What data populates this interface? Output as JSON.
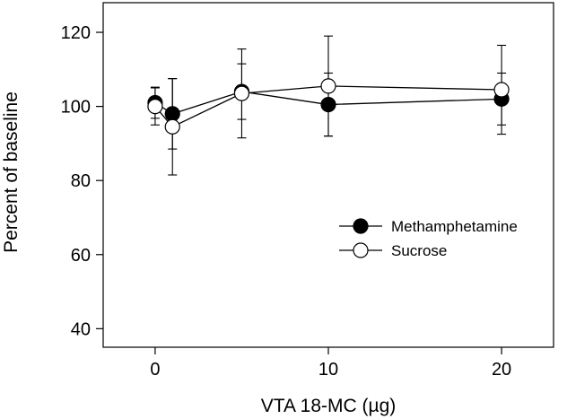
{
  "chart_data": {
    "type": "line",
    "title": "",
    "xlabel": "VTA 18-MC (µg)",
    "ylabel": "Percent of baseline",
    "xlim": [
      -3,
      23
    ],
    "ylim": [
      35,
      128
    ],
    "xticks": [
      0,
      10,
      20
    ],
    "xtick_labels": [
      "0",
      "10",
      "20"
    ],
    "yticks": [
      40,
      60,
      80,
      100,
      120
    ],
    "ytick_labels": [
      "40",
      "60",
      "80",
      "100",
      "120"
    ],
    "grid": false,
    "legend_position": "lower-right",
    "series": [
      {
        "name": "Methamphetamine",
        "marker": "filled-circle",
        "color": "#000000",
        "points": [
          {
            "x": 0,
            "y": 101,
            "err": 4.2
          },
          {
            "x": 1,
            "y": 98,
            "err": 9.5
          },
          {
            "x": 5,
            "y": 104,
            "err": 7.5
          },
          {
            "x": 10,
            "y": 100.5,
            "err": 8.5
          },
          {
            "x": 20,
            "y": 102,
            "err": 7
          }
        ]
      },
      {
        "name": "Sucrose",
        "marker": "open-circle",
        "color": "#000000",
        "points": [
          {
            "x": 0,
            "y": 100,
            "err": 5
          },
          {
            "x": 1,
            "y": 94.5,
            "err": 13
          },
          {
            "x": 5,
            "y": 103.5,
            "err": 12
          },
          {
            "x": 10,
            "y": 105.5,
            "err": 13.5
          },
          {
            "x": 20,
            "y": 104.5,
            "err": 12
          }
        ]
      }
    ]
  }
}
